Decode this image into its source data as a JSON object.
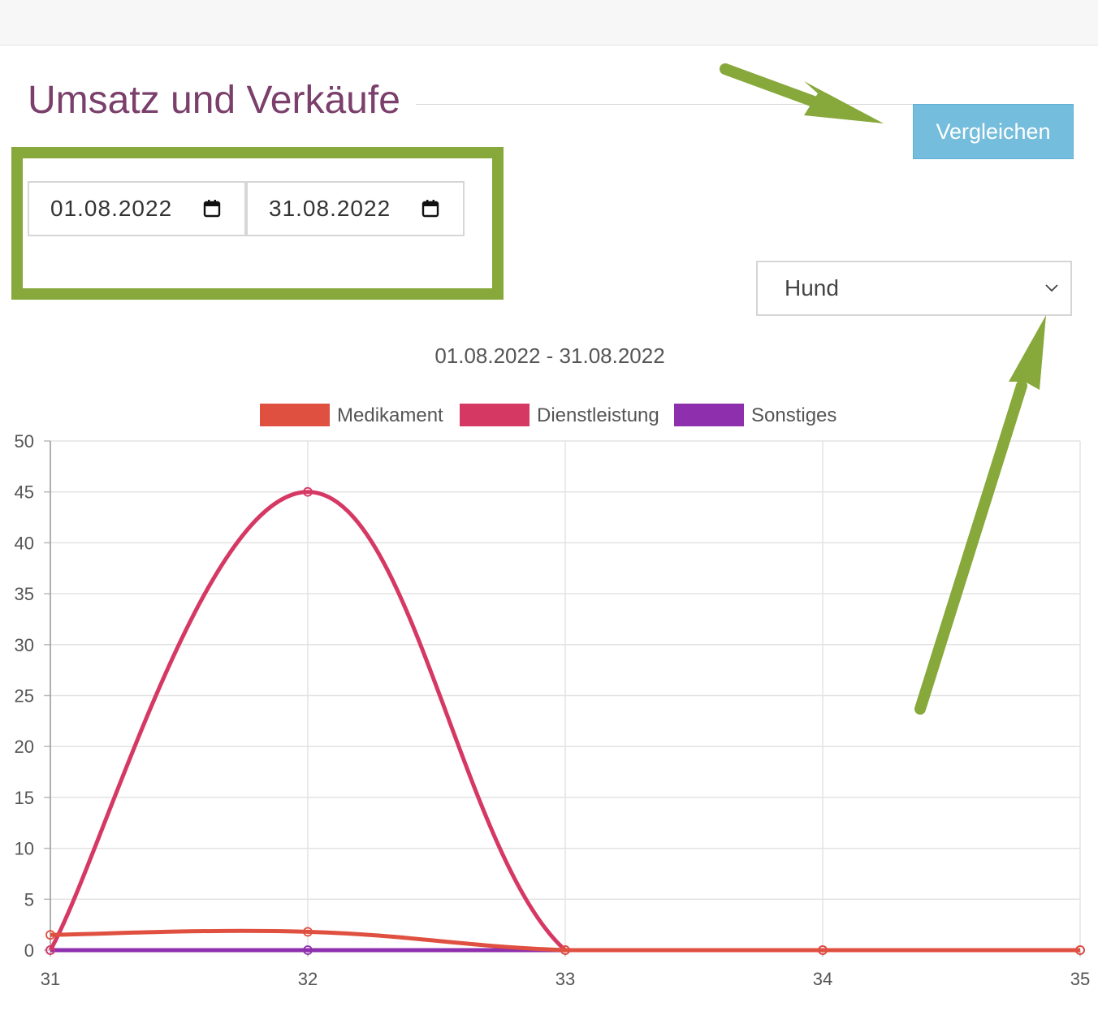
{
  "page": {
    "title": "Umsatz und Verkäufe",
    "compare_button": "Vergleichen",
    "date_from": "01.08.2022",
    "date_to": "31.08.2022",
    "category_select": "Hund"
  },
  "colors": {
    "title": "#7a3f6a",
    "button": "#75bddc",
    "highlight": "#87a83a"
  },
  "chart_data": {
    "type": "line",
    "title": "01.08.2022 - 31.08.2022",
    "xlabel": "",
    "ylabel": "",
    "x": [
      31,
      32,
      33,
      34,
      35
    ],
    "ylim": [
      0,
      50
    ],
    "yticks": [
      0,
      5,
      10,
      15,
      20,
      25,
      30,
      35,
      40,
      45,
      50
    ],
    "grid": true,
    "legend": "top",
    "series": [
      {
        "name": "Medikament",
        "color": "#e05040",
        "values": [
          1.5,
          1.8,
          0,
          0,
          0
        ]
      },
      {
        "name": "Dienstleistung",
        "color": "#d63864",
        "values": [
          0,
          45,
          0,
          0,
          0
        ]
      },
      {
        "name": "Sonstiges",
        "color": "#8e2fae",
        "values": [
          0,
          0,
          0,
          0,
          0
        ]
      }
    ]
  }
}
